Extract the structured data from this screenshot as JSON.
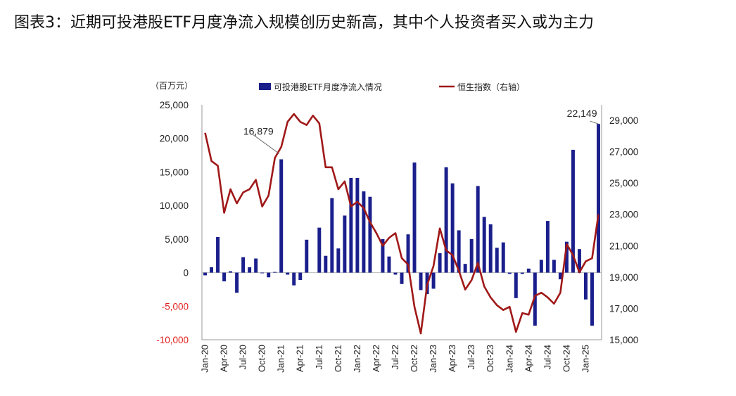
{
  "figure": {
    "title": "图表3：近期可投港股ETF月度净流入规模创历史新高，其中个人投资者买入或为主力"
  },
  "chart_data": {
    "type": "bar",
    "left_unit_label": "（百万元）",
    "legend": {
      "placement": "top",
      "bar_label": "可投港股ETF月度净流入情况",
      "line_label": "恒生指数（右轴）"
    },
    "colors": {
      "bar": "#1a1f8c",
      "line": "#a01818",
      "negative_tick": "#e02020"
    },
    "left_axis": {
      "ylim": [
        -10000,
        25000
      ],
      "ticks": [
        25000,
        20000,
        15000,
        10000,
        5000,
        0,
        -5000,
        -10000
      ],
      "tick_labels": [
        "25,000",
        "20,000",
        "15,000",
        "10,000",
        "5,000",
        "0",
        "-5,000",
        "-10,000"
      ]
    },
    "right_axis": {
      "ylim": [
        15000,
        29800
      ],
      "ticks": [
        29000,
        27000,
        25000,
        23000,
        21000,
        19000,
        17000,
        15000
      ],
      "tick_labels": [
        "29,000",
        "27,000",
        "25,000",
        "23,000",
        "21,000",
        "19,000",
        "17,000",
        "15,000"
      ]
    },
    "x_tick_labels": [
      {
        "index": 0,
        "label": "Jan-20"
      },
      {
        "index": 3,
        "label": "Apr-20"
      },
      {
        "index": 6,
        "label": "Jul-20"
      },
      {
        "index": 9,
        "label": "Oct-20"
      },
      {
        "index": 12,
        "label": "Jan-21"
      },
      {
        "index": 15,
        "label": "Apr-21"
      },
      {
        "index": 18,
        "label": "Jul-21"
      },
      {
        "index": 21,
        "label": "Oct-21"
      },
      {
        "index": 24,
        "label": "Jan-22"
      },
      {
        "index": 27,
        "label": "Apr-22"
      },
      {
        "index": 30,
        "label": "Jul-22"
      },
      {
        "index": 33,
        "label": "Oct-22"
      },
      {
        "index": 36,
        "label": "Jan-23"
      },
      {
        "index": 39,
        "label": "Apr-23"
      },
      {
        "index": 42,
        "label": "Jul-23"
      },
      {
        "index": 45,
        "label": "Oct-23"
      },
      {
        "index": 48,
        "label": "Jan-24"
      },
      {
        "index": 51,
        "label": "Apr-24"
      },
      {
        "index": 54,
        "label": "Jul-24"
      },
      {
        "index": 57,
        "label": "Oct-24"
      },
      {
        "index": 60,
        "label": "Jan-25"
      }
    ],
    "series": [
      {
        "name": "可投港股ETF月度净流入情况",
        "type": "bar",
        "axis": "left",
        "values": [
          -400,
          800,
          5300,
          -1300,
          200,
          -3000,
          2300,
          800,
          2100,
          -100,
          -700,
          100,
          16879,
          -300,
          -1900,
          -1100,
          4900,
          0,
          6700,
          2500,
          11100,
          3600,
          8500,
          14100,
          14100,
          12100,
          11300,
          0,
          5000,
          2400,
          -300,
          -1700,
          5700,
          16400,
          -2600,
          -3200,
          -2400,
          2900,
          15700,
          13300,
          6300,
          1300,
          5000,
          12900,
          8300,
          7200,
          3700,
          4500,
          -200,
          -3800,
          -200,
          600,
          -7900,
          1900,
          7700,
          1900,
          -1000,
          4600,
          18300,
          3500,
          -4000,
          -7900,
          22149
        ]
      },
      {
        "name": "恒生指数（右轴）",
        "type": "line",
        "axis": "right",
        "values": [
          28200,
          26400,
          26100,
          23100,
          24600,
          23700,
          24400,
          24600,
          25200,
          23500,
          24200,
          26600,
          27300,
          28900,
          29400,
          28900,
          28700,
          29300,
          28800,
          26000,
          26000,
          24600,
          25100,
          23500,
          23800,
          23400,
          22500,
          21800,
          21000,
          21500,
          21800,
          20200,
          19800,
          17100,
          15400,
          18500,
          19700,
          22100,
          20700,
          20400,
          19400,
          18200,
          18800,
          19900,
          18400,
          17700,
          17200,
          16900,
          17100,
          15500,
          16700,
          16600,
          17800,
          18000,
          17700,
          17300,
          18000,
          21100,
          20400,
          19300,
          20000,
          20200,
          23000
        ]
      }
    ],
    "annotations": [
      {
        "index": 12,
        "text": "16,879"
      },
      {
        "index": 62,
        "text": "22,149"
      }
    ]
  }
}
